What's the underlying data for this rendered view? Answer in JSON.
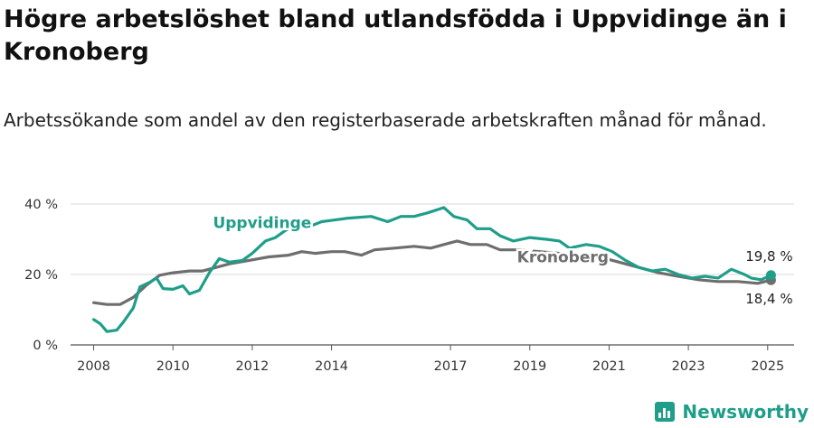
{
  "title": "Högre arbetslöshet bland utlandsfödda i Uppvidinge än i Kronoberg",
  "subtitle": "Arbetssökande som andel av den registerbaserade arbetskraften månad för månad.",
  "brand": {
    "name": "Newsworthy",
    "icon": "bar-chart-icon",
    "color": "#1f9e89"
  },
  "chart_data": {
    "type": "line",
    "y_ticks": [
      "0 %",
      "20 %",
      "40 %"
    ],
    "ylim": [
      0,
      40
    ],
    "x_ticks": [
      "2008",
      "2010",
      "2012",
      "2014",
      "2017",
      "2019",
      "2021",
      "2023",
      "2025"
    ],
    "xlim": [
      "2007-06",
      "2025-09"
    ],
    "grid": true,
    "series": [
      {
        "name": "Uppvidinge",
        "color": "#1f9e89",
        "end_value_label": "19,8 %",
        "points": [
          [
            "2008-01",
            7.2
          ],
          [
            "2008-03",
            6.0
          ],
          [
            "2008-05",
            3.8
          ],
          [
            "2008-08",
            4.2
          ],
          [
            "2008-10",
            6.5
          ],
          [
            "2009-01",
            10.5
          ],
          [
            "2009-03",
            16.5
          ],
          [
            "2009-06",
            17.8
          ],
          [
            "2009-08",
            19.0
          ],
          [
            "2009-10",
            16.0
          ],
          [
            "2010-01",
            15.8
          ],
          [
            "2010-04",
            16.8
          ],
          [
            "2010-06",
            14.5
          ],
          [
            "2010-09",
            15.5
          ],
          [
            "2010-12",
            20.5
          ],
          [
            "2011-03",
            24.5
          ],
          [
            "2011-06",
            23.5
          ],
          [
            "2011-10",
            24.0
          ],
          [
            "2012-01",
            26.0
          ],
          [
            "2012-05",
            29.5
          ],
          [
            "2012-08",
            30.5
          ],
          [
            "2012-11",
            32.5
          ],
          [
            "2013-03",
            34.5
          ],
          [
            "2013-06",
            33.5
          ],
          [
            "2013-10",
            35.0
          ],
          [
            "2014-02",
            35.5
          ],
          [
            "2014-06",
            36.0
          ],
          [
            "2015-01",
            36.5
          ],
          [
            "2015-06",
            35.0
          ],
          [
            "2015-10",
            36.5
          ],
          [
            "2016-02",
            36.5
          ],
          [
            "2016-06",
            37.5
          ],
          [
            "2016-11",
            39.0
          ],
          [
            "2017-02",
            36.5
          ],
          [
            "2017-06",
            35.5
          ],
          [
            "2017-09",
            33.0
          ],
          [
            "2018-01",
            33.0
          ],
          [
            "2018-04",
            31.0
          ],
          [
            "2018-08",
            29.5
          ],
          [
            "2019-01",
            30.5
          ],
          [
            "2019-06",
            30.0
          ],
          [
            "2019-10",
            29.5
          ],
          [
            "2020-01",
            27.5
          ],
          [
            "2020-06",
            28.5
          ],
          [
            "2020-10",
            28.0
          ],
          [
            "2021-02",
            26.5
          ],
          [
            "2021-06",
            24.0
          ],
          [
            "2021-10",
            22.0
          ],
          [
            "2022-02",
            21.0
          ],
          [
            "2022-06",
            21.5
          ],
          [
            "2022-10",
            20.0
          ],
          [
            "2023-02",
            19.0
          ],
          [
            "2023-06",
            19.5
          ],
          [
            "2023-10",
            19.0
          ],
          [
            "2024-02",
            21.5
          ],
          [
            "2024-06",
            20.0
          ],
          [
            "2024-08",
            19.0
          ],
          [
            "2024-11",
            18.5
          ],
          [
            "2025-02",
            19.8
          ]
        ]
      },
      {
        "name": "Kronoberg",
        "color": "#6e6e6e",
        "end_value_label": "18,4 %",
        "points": [
          [
            "2008-01",
            12.0
          ],
          [
            "2008-05",
            11.5
          ],
          [
            "2008-09",
            11.5
          ],
          [
            "2009-01",
            13.5
          ],
          [
            "2009-05",
            17.0
          ],
          [
            "2009-09",
            19.8
          ],
          [
            "2010-01",
            20.5
          ],
          [
            "2010-06",
            21.0
          ],
          [
            "2010-10",
            21.0
          ],
          [
            "2011-02",
            22.0
          ],
          [
            "2011-06",
            23.0
          ],
          [
            "2011-12",
            24.0
          ],
          [
            "2012-06",
            25.0
          ],
          [
            "2012-12",
            25.5
          ],
          [
            "2013-04",
            26.5
          ],
          [
            "2013-08",
            26.0
          ],
          [
            "2014-01",
            26.5
          ],
          [
            "2014-05",
            26.5
          ],
          [
            "2014-10",
            25.5
          ],
          [
            "2015-02",
            27.0
          ],
          [
            "2015-08",
            27.5
          ],
          [
            "2016-02",
            28.0
          ],
          [
            "2016-07",
            27.5
          ],
          [
            "2016-11",
            28.5
          ],
          [
            "2017-03",
            29.5
          ],
          [
            "2017-07",
            28.5
          ],
          [
            "2017-12",
            28.5
          ],
          [
            "2018-04",
            27.0
          ],
          [
            "2018-10",
            27.0
          ],
          [
            "2019-04",
            26.5
          ],
          [
            "2019-10",
            26.0
          ],
          [
            "2020-04",
            25.5
          ],
          [
            "2020-10",
            25.0
          ],
          [
            "2021-04",
            23.5
          ],
          [
            "2021-10",
            22.0
          ],
          [
            "2022-04",
            20.5
          ],
          [
            "2022-10",
            19.5
          ],
          [
            "2023-04",
            18.5
          ],
          [
            "2023-10",
            18.0
          ],
          [
            "2024-04",
            18.0
          ],
          [
            "2024-10",
            17.5
          ],
          [
            "2025-02",
            18.4
          ]
        ]
      }
    ]
  }
}
